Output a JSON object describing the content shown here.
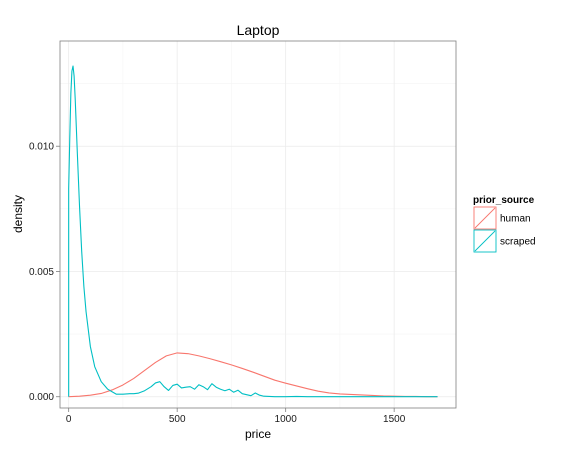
{
  "chart_data": {
    "type": "line",
    "title": "Laptop",
    "xlabel": "price",
    "ylabel": "density",
    "xlim": [
      -40,
      1785
    ],
    "ylim": [
      -0.00045,
      0.0142
    ],
    "xticks": [
      0,
      500,
      1000,
      1500
    ],
    "xtick_labels": [
      "0",
      "500",
      "1000",
      "1500"
    ],
    "yticks": [
      0.0,
      0.005,
      0.01
    ],
    "ytick_labels": [
      "0.000",
      "0.005",
      "0.010"
    ],
    "grid": true,
    "legend": {
      "title": "prior_source",
      "position": "right",
      "entries": [
        "human",
        "scraped"
      ]
    },
    "series": [
      {
        "name": "human",
        "color": "#F8766D",
        "x": [
          0,
          50,
          100,
          150,
          200,
          250,
          300,
          350,
          400,
          450,
          500,
          550,
          600,
          650,
          700,
          750,
          800,
          850,
          900,
          950,
          1000,
          1050,
          1100,
          1150,
          1200,
          1250,
          1300,
          1350,
          1400,
          1450,
          1500,
          1550,
          1600,
          1650,
          1700
        ],
        "y": [
          0.0,
          2e-05,
          6e-05,
          0.00013,
          0.00027,
          0.00047,
          0.00073,
          0.00105,
          0.00137,
          0.00163,
          0.00175,
          0.00172,
          0.00163,
          0.00152,
          0.0014,
          0.00127,
          0.00113,
          0.00098,
          0.00082,
          0.00066,
          0.00054,
          0.00043,
          0.00032,
          0.00022,
          0.00015,
          0.00011,
          9e-05,
          7e-05,
          5e-05,
          3e-05,
          2e-05,
          1e-05,
          1e-05,
          0.0,
          0.0
        ]
      },
      {
        "name": "scraped",
        "color": "#00BFC4",
        "x": [
          0,
          0,
          5,
          10,
          15,
          20,
          25,
          30,
          40,
          50,
          60,
          70,
          80,
          100,
          120,
          150,
          180,
          200,
          220,
          250,
          280,
          300,
          320,
          350,
          380,
          400,
          420,
          440,
          460,
          480,
          500,
          520,
          540,
          560,
          580,
          600,
          620,
          640,
          660,
          680,
          700,
          720,
          740,
          760,
          780,
          800,
          820,
          840,
          860,
          880,
          900,
          950,
          1000,
          1050,
          1100,
          1150,
          1200,
          1300,
          1400,
          1500,
          1600,
          1700
        ],
        "y": [
          0.0,
          0.0083,
          0.0103,
          0.0121,
          0.013,
          0.0132,
          0.0128,
          0.0119,
          0.0097,
          0.0076,
          0.0058,
          0.0044,
          0.0034,
          0.002,
          0.0012,
          0.0006,
          0.0003,
          0.0002,
          0.0001,
          0.0001,
          0.00012,
          0.00012,
          0.00014,
          0.00024,
          0.0004,
          0.00055,
          0.0006,
          0.0004,
          0.00025,
          0.00045,
          0.0005,
          0.00035,
          0.00038,
          0.0004,
          0.0003,
          0.00048,
          0.0004,
          0.00028,
          0.00052,
          0.00038,
          0.0003,
          0.00024,
          0.0003,
          0.00018,
          0.00026,
          0.00012,
          8e-05,
          4e-05,
          0.00015,
          6e-05,
          2e-05,
          0.0,
          0.0,
          1e-05,
          0.0,
          0.0,
          0.0,
          0.0,
          0.0,
          0.0,
          0.0,
          0.0
        ]
      }
    ]
  }
}
